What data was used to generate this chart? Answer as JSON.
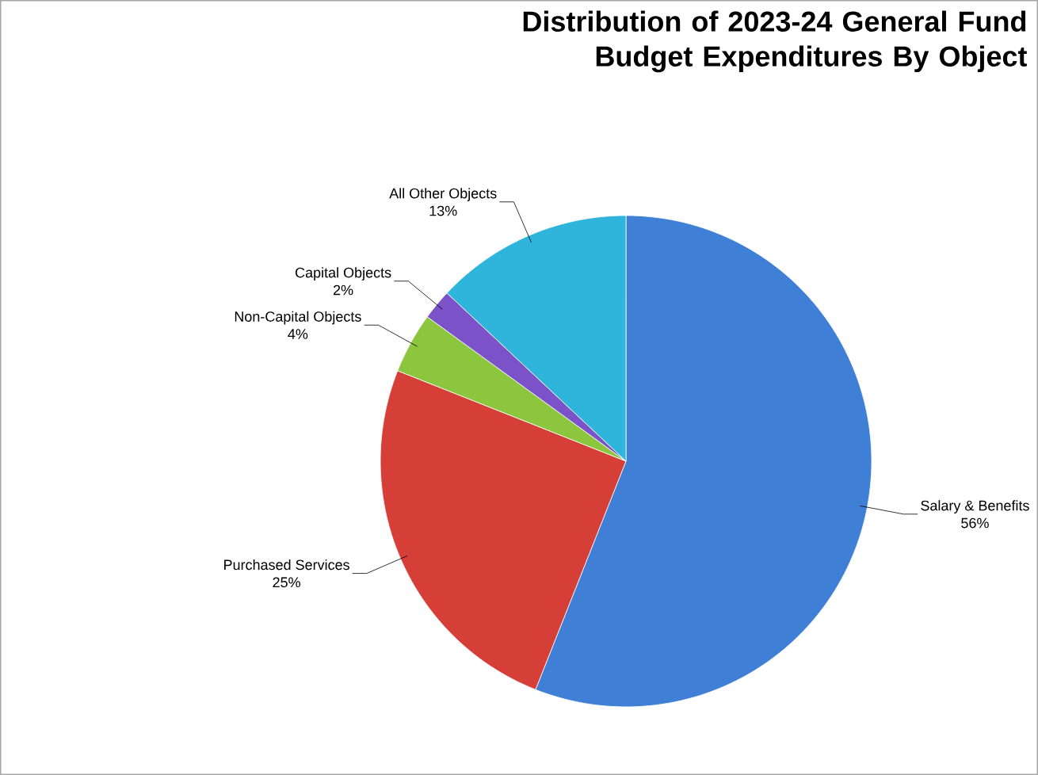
{
  "chart_data": {
    "type": "pie",
    "title": "Distribution of 2023-24 General Fund Budget Expenditures By Object",
    "categories": [
      "Salary & Benefits",
      "Purchased Services",
      "Non-Capital Objects",
      "Capital Objects",
      "All Other Objects"
    ],
    "values": [
      56,
      25,
      4,
      2,
      13
    ],
    "colors": [
      "#3f7fd6",
      "#d63f38",
      "#8cc63f",
      "#7b52c7",
      "#2fb5dc"
    ],
    "value_labels": [
      "56%",
      "25%",
      "4%",
      "2%",
      "13%"
    ]
  }
}
